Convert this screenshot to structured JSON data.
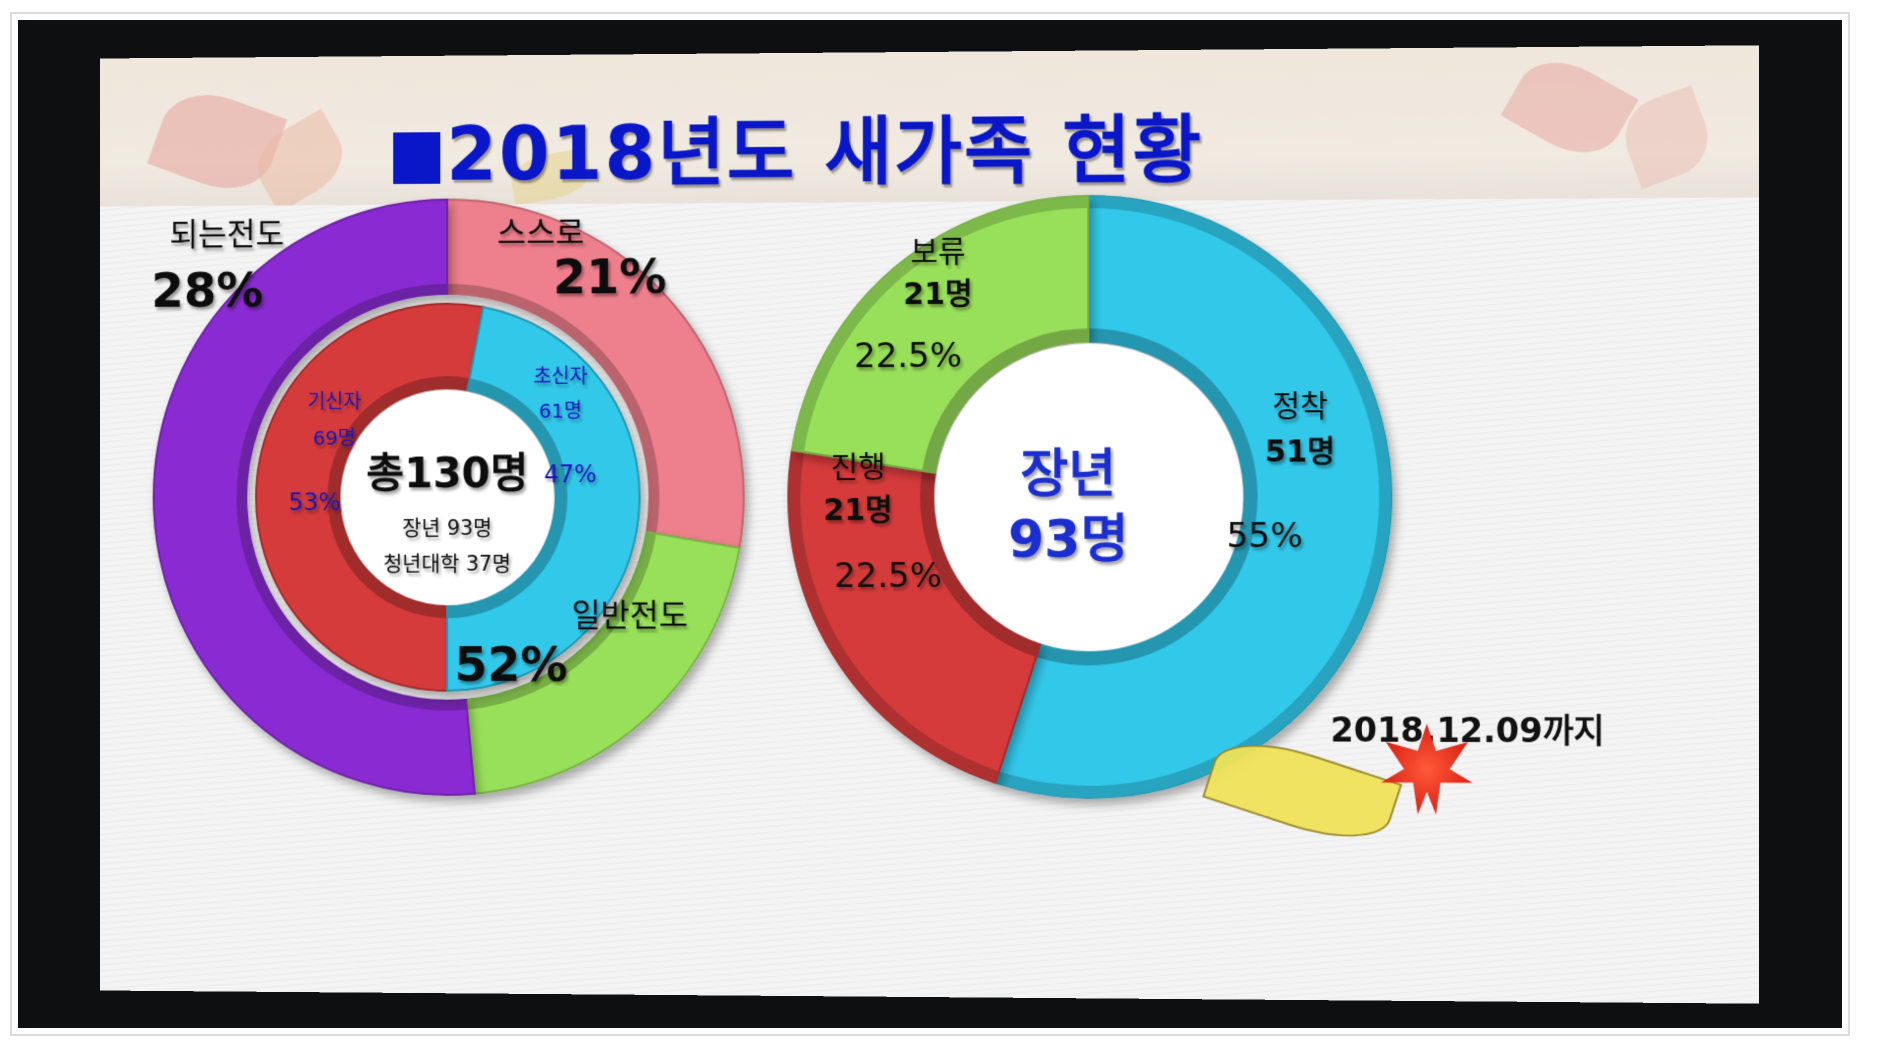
{
  "slide": {
    "title": "2018년도 새가족 현황",
    "date_note": "2018.12.09까지"
  },
  "colors": {
    "title_blue": "#0a17c9",
    "pink": "#ee7f8c",
    "green": "#99e05a",
    "purple": "#8a2bd2",
    "red": "#d63b3b",
    "cyan": "#31c8ea"
  },
  "chart_data": [
    {
      "type": "pie",
      "style": "nested-donut",
      "center_text": {
        "main": "총130명",
        "line1": "장년 93명",
        "line2": "청년대학 37명"
      },
      "outer_ring": [
        {
          "label": "되는전도",
          "percent_label": "28%",
          "value": 28,
          "color": "#ee7f8c"
        },
        {
          "label": "스스로",
          "percent_label": "21%",
          "value": 21,
          "color": "#99e05a"
        },
        {
          "label": "일반전도",
          "percent_label": "52%",
          "value": 52,
          "color": "#8a2bd2"
        }
      ],
      "inner_ring": [
        {
          "label": "기신자",
          "count_label": "69명",
          "percent_label": "53%",
          "value": 53,
          "color": "#d63b3b"
        },
        {
          "label": "초신자",
          "count_label": "61명",
          "percent_label": "47%",
          "value": 47,
          "color": "#31c8ea"
        }
      ]
    },
    {
      "type": "pie",
      "style": "donut",
      "center_text": {
        "line1": "장년",
        "line2": "93명"
      },
      "slices": [
        {
          "label": "정착",
          "count_label": "51명",
          "percent_label": "55%",
          "value": 55,
          "color": "#31c8ea"
        },
        {
          "label": "진행",
          "count_label": "21명",
          "percent_label": "22.5%",
          "value": 22.5,
          "color": "#d63b3b"
        },
        {
          "label": "보류",
          "count_label": "21명",
          "percent_label": "22.5%",
          "value": 22.5,
          "color": "#99e05a"
        }
      ]
    }
  ]
}
